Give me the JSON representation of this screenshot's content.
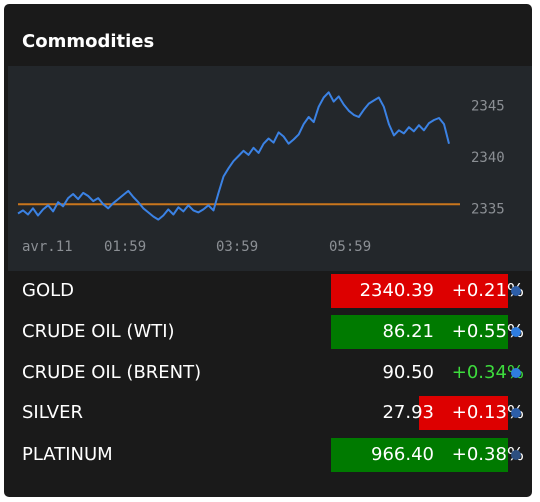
{
  "widget": {
    "title": "Commodities"
  },
  "chart_data": {
    "type": "line",
    "x_ticks": [
      "avr.11",
      "01:59",
      "03:59",
      "05:59"
    ],
    "y_ticks": [
      2345,
      2340,
      2335
    ],
    "ylim": [
      2332.5,
      2347.5
    ],
    "reference_level": 2335.4,
    "series": [
      {
        "values": [
          2334.5,
          2334.8,
          2334.4,
          2335.0,
          2334.3,
          2334.9,
          2335.3,
          2334.7,
          2335.6,
          2335.2,
          2336.0,
          2336.4,
          2335.9,
          2336.5,
          2336.2,
          2335.7,
          2336.0,
          2335.4,
          2335.0,
          2335.5,
          2335.9,
          2336.3,
          2336.7,
          2336.1,
          2335.6,
          2335.0,
          2334.6,
          2334.2,
          2333.9,
          2334.3,
          2334.9,
          2334.4,
          2335.1,
          2334.7,
          2335.3,
          2334.8,
          2334.6,
          2334.9,
          2335.3,
          2334.8,
          2336.5,
          2338.1,
          2338.9,
          2339.6,
          2340.1,
          2340.6,
          2340.2,
          2340.9,
          2340.4,
          2341.3,
          2341.8,
          2341.4,
          2342.4,
          2342.0,
          2341.3,
          2341.7,
          2342.2,
          2343.2,
          2343.9,
          2343.4,
          2344.9,
          2345.8,
          2346.3,
          2345.4,
          2345.9,
          2345.1,
          2344.5,
          2344.1,
          2343.9,
          2344.6,
          2345.2,
          2345.5,
          2345.8,
          2344.9,
          2343.2,
          2342.1,
          2342.6,
          2342.3,
          2342.9,
          2342.5,
          2343.1,
          2342.6,
          2343.3,
          2343.6,
          2343.8,
          2343.2,
          2341.3
        ]
      }
    ]
  },
  "rows": [
    {
      "name": "GOLD",
      "price": "2340.39",
      "change": "+0.21%",
      "style": "red",
      "dot": "#2d5ea8"
    },
    {
      "name": "CRUDE OIL (WTI)",
      "price": "86.21",
      "change": "+0.55%",
      "style": "green",
      "dot": "#2f7de0"
    },
    {
      "name": "CRUDE OIL (BRENT)",
      "price": "90.50",
      "change": "+0.34%",
      "style": "plain",
      "dot": "#2f7de0"
    },
    {
      "name": "SILVER",
      "price": "27.93",
      "change": "+0.13%",
      "style": "change-red",
      "dot": "#2d5ea8"
    },
    {
      "name": "PLATINUM",
      "price": "966.40",
      "change": "+0.38%",
      "style": "green",
      "dot": "#2d4f80"
    }
  ],
  "colors": {
    "line": "#3b82e4",
    "reference": "#c9761d",
    "up": "#007a00",
    "down": "#dd0000"
  }
}
